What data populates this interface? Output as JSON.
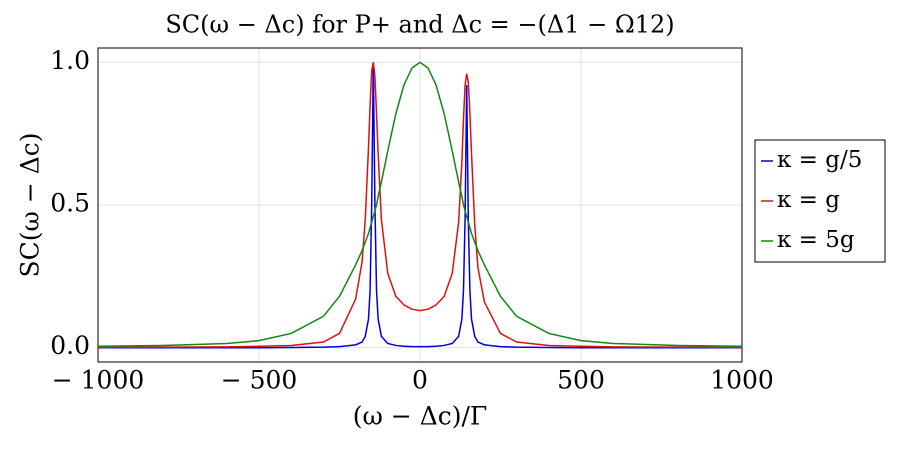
{
  "chart_data": {
    "type": "line",
    "title": "SC(ω − Δc) for P+ and Δc = −(Δ1 − Ω12)",
    "x_label": "(ω − Δc)/Γ",
    "y_label": "SC(ω − Δc)",
    "x": [
      -1000,
      -800,
      -600,
      -500,
      -400,
      -300,
      -250,
      -200,
      -180,
      -170,
      -160,
      -155,
      -150,
      -145,
      -140,
      -135,
      -130,
      -120,
      -100,
      -75,
      -50,
      -25,
      0,
      25,
      50,
      75,
      100,
      120,
      130,
      135,
      140,
      145,
      150,
      155,
      160,
      170,
      180,
      200,
      250,
      300,
      400,
      500,
      600,
      800,
      1000
    ],
    "series": [
      {
        "name": "κ = g/5",
        "color": "#0000dd",
        "values": [
          0,
          0,
          0,
          0,
          0.001,
          0.002,
          0.004,
          0.01,
          0.02,
          0.04,
          0.1,
          0.2,
          0.5,
          1.0,
          0.5,
          0.2,
          0.1,
          0.04,
          0.015,
          0.008,
          0.005,
          0.004,
          0.004,
          0.004,
          0.005,
          0.008,
          0.015,
          0.04,
          0.1,
          0.2,
          0.45,
          0.92,
          0.45,
          0.2,
          0.1,
          0.04,
          0.02,
          0.01,
          0.004,
          0.002,
          0.001,
          0,
          0,
          0,
          0
        ]
      },
      {
        "name": "κ = g",
        "color": "#dd1111",
        "values": [
          0.001,
          0.002,
          0.003,
          0.005,
          0.008,
          0.02,
          0.05,
          0.17,
          0.3,
          0.45,
          0.7,
          0.85,
          0.97,
          1.0,
          0.95,
          0.82,
          0.68,
          0.45,
          0.26,
          0.18,
          0.15,
          0.135,
          0.13,
          0.135,
          0.15,
          0.18,
          0.26,
          0.44,
          0.65,
          0.8,
          0.92,
          0.96,
          0.93,
          0.82,
          0.68,
          0.43,
          0.28,
          0.16,
          0.05,
          0.02,
          0.008,
          0.005,
          0.003,
          0.002,
          0.001
        ]
      },
      {
        "name": "κ = 5g",
        "color": "#118811",
        "values": [
          0.005,
          0.008,
          0.015,
          0.025,
          0.05,
          0.11,
          0.18,
          0.29,
          0.34,
          0.37,
          0.4,
          0.42,
          0.44,
          0.46,
          0.48,
          0.5,
          0.53,
          0.58,
          0.69,
          0.82,
          0.92,
          0.98,
          1.0,
          0.98,
          0.92,
          0.82,
          0.69,
          0.58,
          0.53,
          0.5,
          0.48,
          0.46,
          0.44,
          0.42,
          0.4,
          0.37,
          0.34,
          0.29,
          0.18,
          0.11,
          0.05,
          0.025,
          0.015,
          0.008,
          0.005
        ]
      }
    ],
    "xlim": [
      -1000,
      1000
    ],
    "xticks": [
      {
        "value": -1000,
        "label": "− 1000"
      },
      {
        "value": -500,
        "label": "− 500"
      },
      0,
      500,
      1000
    ],
    "ylim": [
      -0.05,
      1.05
    ],
    "yticks": [
      {
        "value": 0,
        "label": "0.0"
      },
      0.5,
      {
        "value": 1,
        "label": "1.0"
      }
    ],
    "grid": true,
    "legend": "right"
  }
}
